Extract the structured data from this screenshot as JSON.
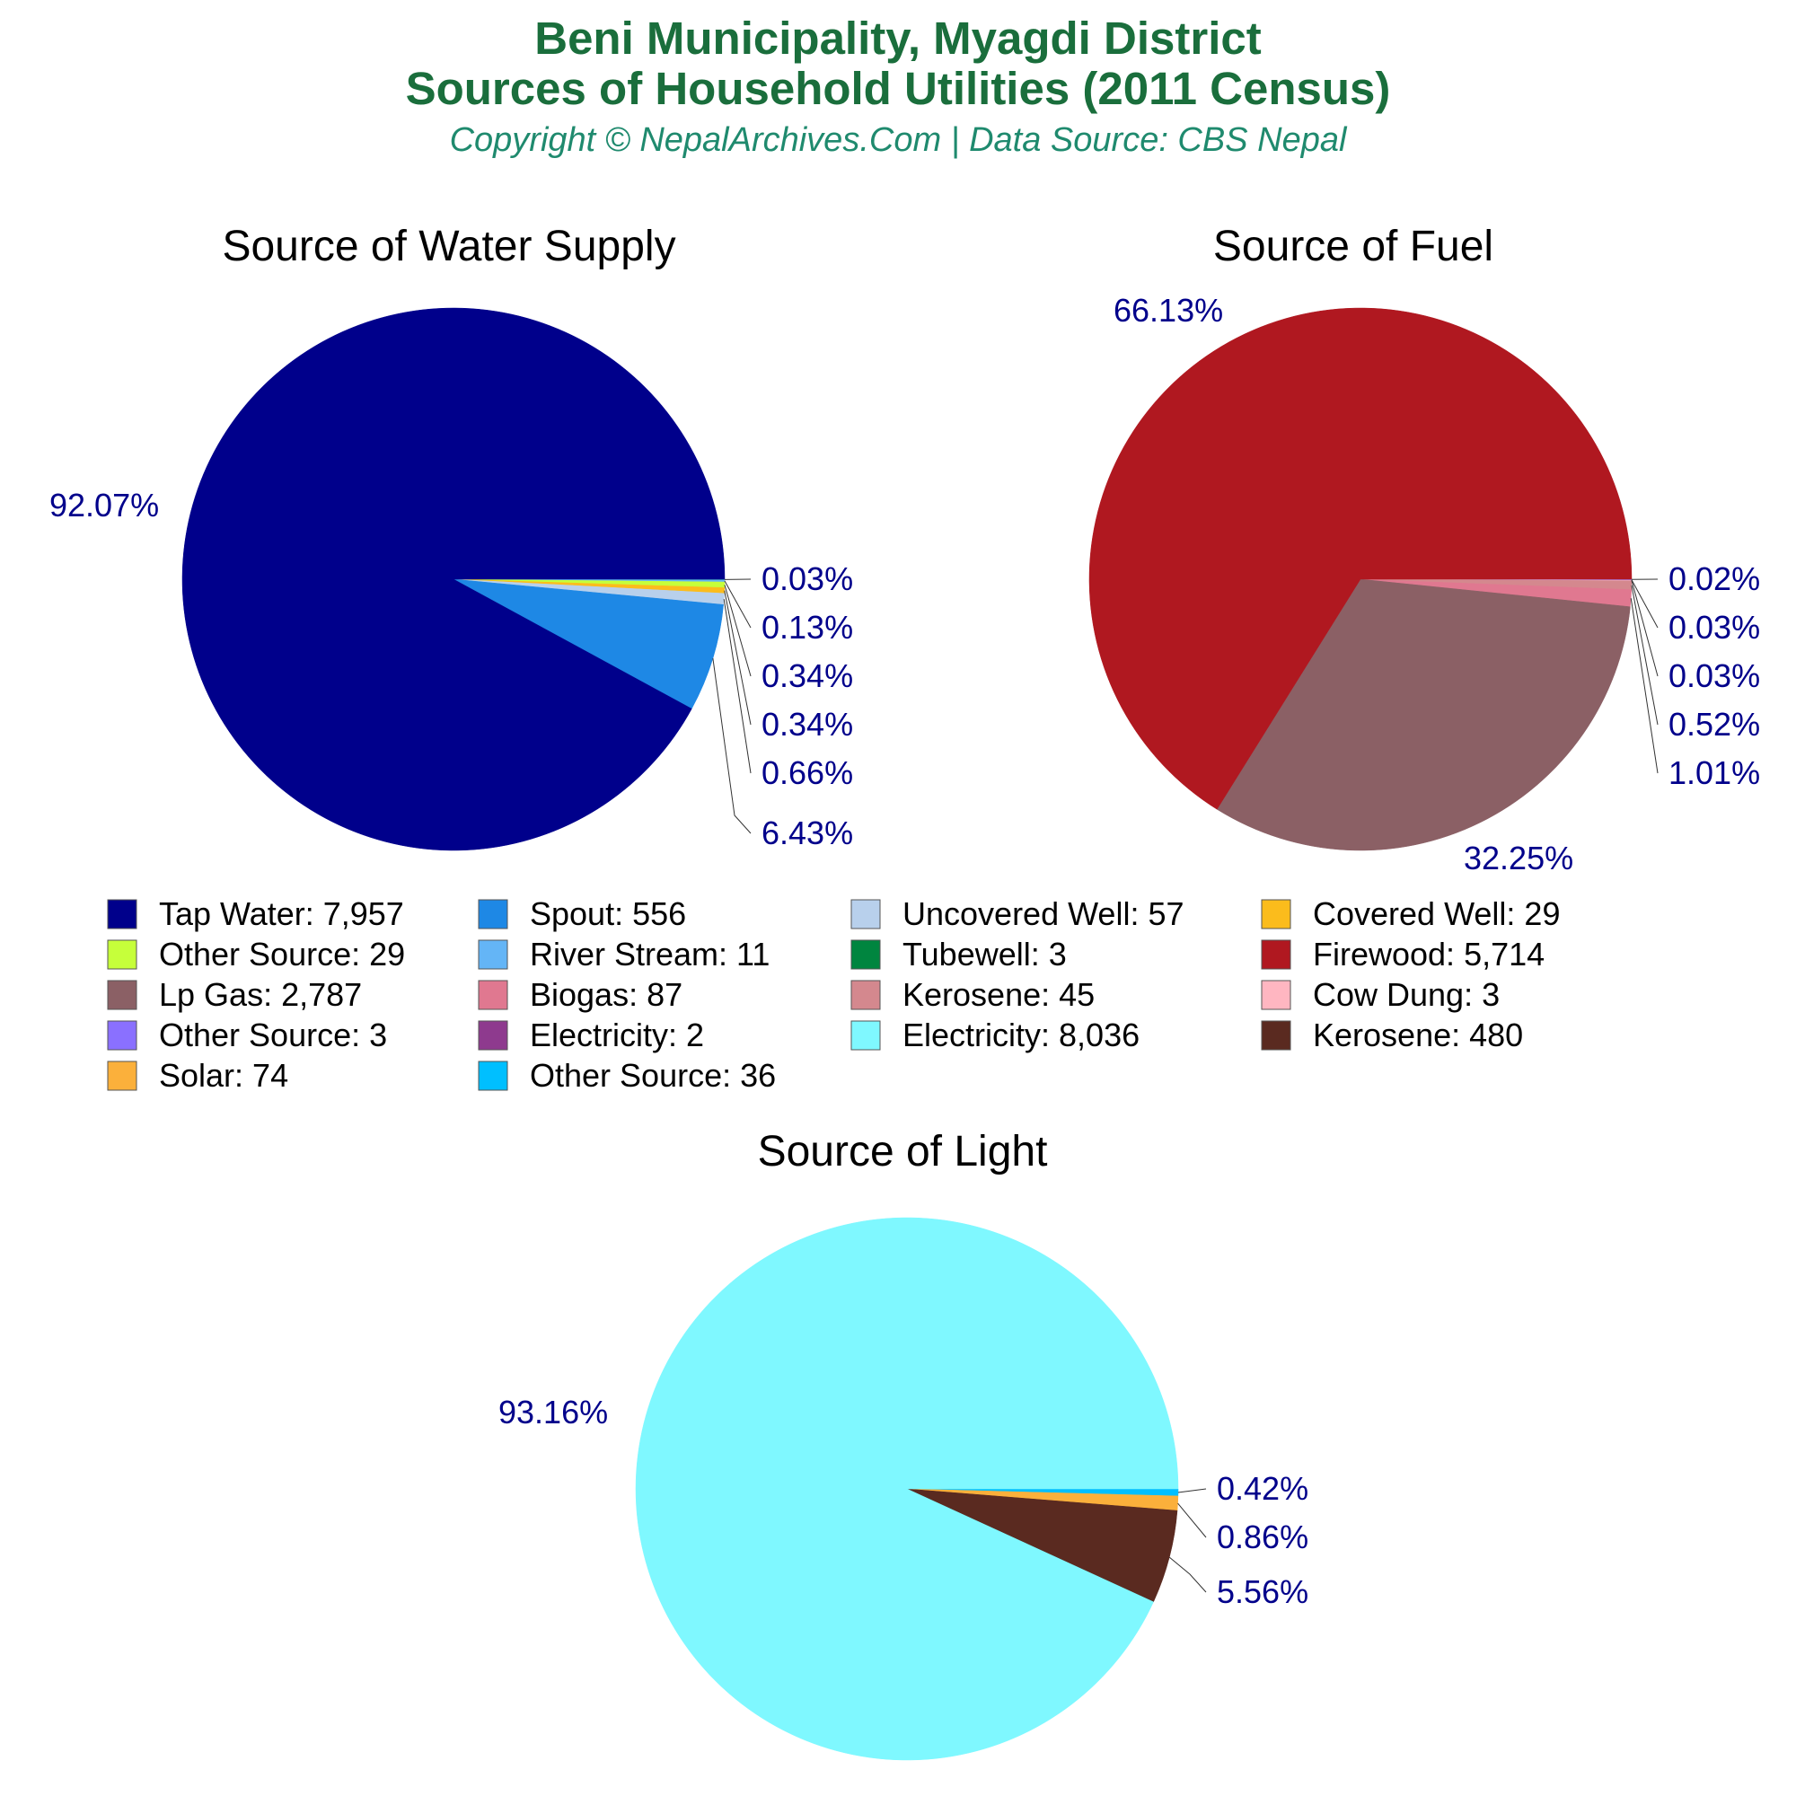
{
  "header": {
    "title_line1": "Beni Municipality, Myagdi District",
    "title_line2": "Sources of Household Utilities (2011 Census)",
    "subtitle": "Copyright © NepalArchives.Com | Data Source: CBS Nepal"
  },
  "colors": {
    "title": "#1a6e3c",
    "subtitle": "#1f8a6e",
    "pct_label": "#00008b",
    "chart_title": "#000000"
  },
  "chart_data": [
    {
      "type": "pie",
      "title": "Source of Water Supply",
      "slices": [
        {
          "label": "Tap Water",
          "value": 7957,
          "display": "7,957",
          "pct": "92.07%",
          "color": "#00008b"
        },
        {
          "label": "Spout",
          "value": 556,
          "display": "556",
          "pct": "6.43%",
          "color": "#1e88e5"
        },
        {
          "label": "Uncovered Well",
          "value": 57,
          "display": "57",
          "pct": "0.66%",
          "color": "#b8d0ec"
        },
        {
          "label": "Covered Well",
          "value": 29,
          "display": "29",
          "pct": "0.34%",
          "color": "#fbbc1c"
        },
        {
          "label": "Other Source",
          "value": 29,
          "display": "29",
          "pct": "0.34%",
          "color": "#c6ff3a"
        },
        {
          "label": "River Stream",
          "value": 11,
          "display": "11",
          "pct": "0.13%",
          "color": "#64b5f6"
        },
        {
          "label": "Tubewell",
          "value": 3,
          "display": "3",
          "pct": "0.03%",
          "color": "#00853f"
        }
      ]
    },
    {
      "type": "pie",
      "title": "Source of Fuel",
      "slices": [
        {
          "label": "Firewood",
          "value": 5714,
          "display": "5,714",
          "pct": "66.13%",
          "color": "#b01820"
        },
        {
          "label": "Lp Gas",
          "value": 2787,
          "display": "2,787",
          "pct": "32.25%",
          "color": "#8b6065"
        },
        {
          "label": "Biogas",
          "value": 87,
          "display": "87",
          "pct": "1.01%",
          "color": "#e07890"
        },
        {
          "label": "Kerosene",
          "value": 45,
          "display": "45",
          "pct": "0.52%",
          "color": "#d4888e"
        },
        {
          "label": "Cow Dung",
          "value": 3,
          "display": "3",
          "pct": "0.03%",
          "color": "#ffb6c1"
        },
        {
          "label": "Other Source",
          "value": 3,
          "display": "3",
          "pct": "0.03%",
          "color": "#8a70ff"
        },
        {
          "label": "Electricity",
          "value": 2,
          "display": "2",
          "pct": "0.02%",
          "color": "#8e3a8e"
        }
      ]
    },
    {
      "type": "pie",
      "title": "Source of Light",
      "slices": [
        {
          "label": "Electricity",
          "value": 8036,
          "display": "8,036",
          "pct": "93.16%",
          "color": "#7ff8ff"
        },
        {
          "label": "Kerosene",
          "value": 480,
          "display": "480",
          "pct": "5.56%",
          "color": "#5a2a20"
        },
        {
          "label": "Solar",
          "value": 74,
          "display": "74",
          "pct": "0.86%",
          "color": "#fbb03b"
        },
        {
          "label": "Other Source",
          "value": 36,
          "display": "36",
          "pct": "0.42%",
          "color": "#00bfff"
        }
      ]
    }
  ],
  "legend": [
    {
      "label": "Tap Water: 7,957",
      "color": "#00008b"
    },
    {
      "label": "Spout: 556",
      "color": "#1e88e5"
    },
    {
      "label": "Uncovered Well: 57",
      "color": "#b8d0ec"
    },
    {
      "label": "Covered Well: 29",
      "color": "#fbbc1c"
    },
    {
      "label": "Other Source: 29",
      "color": "#c6ff3a"
    },
    {
      "label": "River Stream: 11",
      "color": "#64b5f6"
    },
    {
      "label": "Tubewell: 3",
      "color": "#00853f"
    },
    {
      "label": "Firewood: 5,714",
      "color": "#b01820"
    },
    {
      "label": "Lp Gas: 2,787",
      "color": "#8b6065"
    },
    {
      "label": "Biogas: 87",
      "color": "#e07890"
    },
    {
      "label": "Kerosene: 45",
      "color": "#d4888e"
    },
    {
      "label": "Cow Dung: 3",
      "color": "#ffb6c1"
    },
    {
      "label": "Other Source: 3",
      "color": "#8a70ff"
    },
    {
      "label": "Electricity: 2",
      "color": "#8e3a8e"
    },
    {
      "label": "Electricity: 8,036",
      "color": "#7ff8ff"
    },
    {
      "label": "Kerosene: 480",
      "color": "#5a2a20"
    },
    {
      "label": "Solar: 74",
      "color": "#fbb03b"
    },
    {
      "label": "Other Source: 36",
      "color": "#00bfff"
    }
  ]
}
